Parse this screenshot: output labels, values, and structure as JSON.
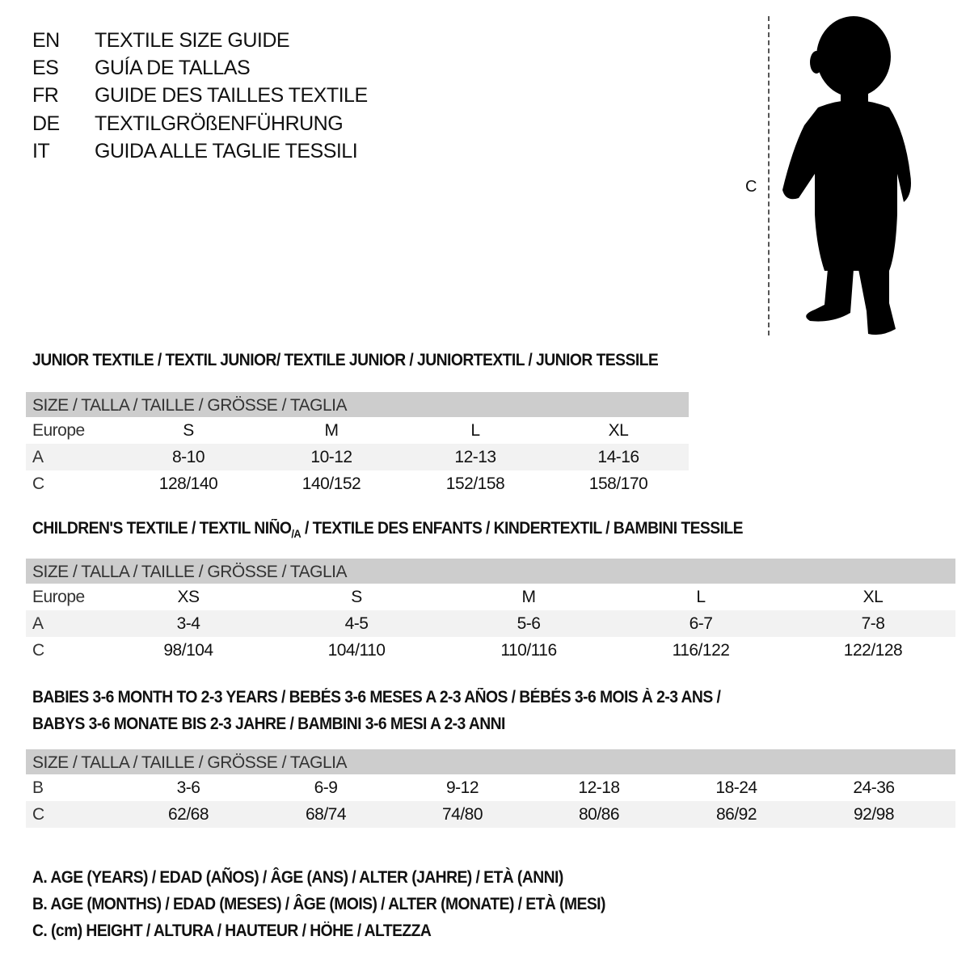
{
  "titles": [
    {
      "code": "EN",
      "text": "TEXTILE SIZE GUIDE"
    },
    {
      "code": "ES",
      "text": "GUÍA DE TALLAS"
    },
    {
      "code": "FR",
      "text": "GUIDE DES TAILLES TEXTILE"
    },
    {
      "code": "DE",
      "text": "TEXTILGRÖßENFÜHRUNG"
    },
    {
      "code": "IT",
      "text": "GUIDA ALLE TAGLIE TESSILI"
    }
  ],
  "figure": {
    "dimension_label": "C",
    "icon": "baby-silhouette"
  },
  "junior": {
    "title": "JUNIOR TEXTILE / TEXTIL JUNIOR/ TEXTILE JUNIOR / JUNIORTEXTIL / JUNIOR TESSILE",
    "header": "SIZE / TALLA / TAILLE / GRÖSSE / TAGLIA",
    "rows": [
      {
        "label": "Europe",
        "values": [
          "S",
          "M",
          "L",
          "XL"
        ]
      },
      {
        "label": "A",
        "values": [
          "8-10",
          "10-12",
          "12-13",
          "14-16"
        ]
      },
      {
        "label": "C",
        "values": [
          "128/140",
          "140/152",
          "152/158",
          "158/170"
        ]
      }
    ]
  },
  "children": {
    "title_a": "CHILDREN'S TEXTILE / TEXTIL NIÑO",
    "title_sub": "/A",
    "title_b": " / TEXTILE DES ENFANTS / KINDERTEXTIL / BAMBINI TESSILE",
    "header": "SIZE / TALLA / TAILLE / GRÖSSE / TAGLIA",
    "rows": [
      {
        "label": "Europe",
        "values": [
          "XS",
          "S",
          "M",
          "L",
          "XL"
        ]
      },
      {
        "label": "A",
        "values": [
          "3-4",
          "4-5",
          "5-6",
          "6-7",
          "7-8"
        ]
      },
      {
        "label": "C",
        "values": [
          "98/104",
          "104/110",
          "110/116",
          "116/122",
          "122/128"
        ]
      }
    ]
  },
  "babies": {
    "title_1": "BABIES 3-6 MONTH TO 2-3 YEARS / BEBÉS 3-6 MESES A 2-3 AÑOS / BÉBÉS 3-6 MOIS À 2-3 ANS /",
    "title_2": "BABYS 3-6 MONATE BIS 2-3 JAHRE / BAMBINI 3-6 MESI A 2-3 ANNI",
    "header": "SIZE / TALLA / TAILLE / GRÖSSE / TAGLIA",
    "rows": [
      {
        "label": "B",
        "values": [
          "3-6",
          "6-9",
          "9-12",
          "12-18",
          "18-24",
          "24-36"
        ]
      },
      {
        "label": "C",
        "values": [
          "62/68",
          "68/74",
          "74/80",
          "80/86",
          "86/92",
          "92/98"
        ]
      }
    ]
  },
  "legend": [
    "A. AGE (YEARS) / EDAD (AÑOS) / ÂGE (ANS) / ALTER (JAHRE) / ETÀ (ANNI)",
    "B. AGE (MONTHS) / EDAD (MESES) / ÂGE (MOIS) / ALTER (MONATE) / ETÀ (MESI)",
    "C. (cm) HEIGHT / ALTURA / HAUTEUR / HÖHE / ALTEZZA"
  ],
  "colors": {
    "header_bg": "#cdcdcd",
    "alt_row_bg": "#f2f2f2"
  }
}
